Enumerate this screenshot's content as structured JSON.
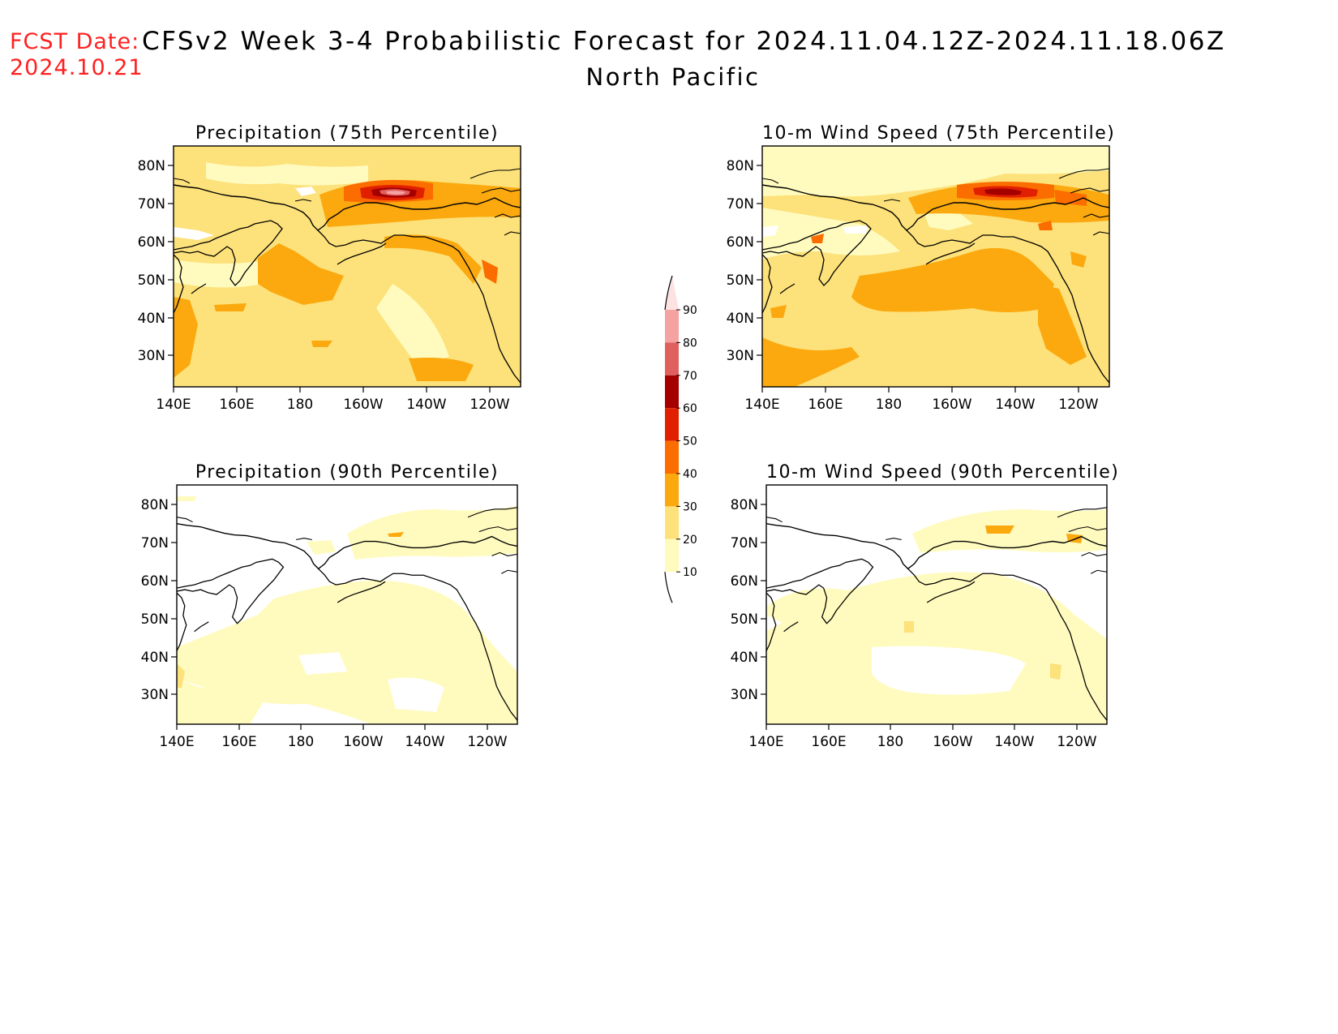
{
  "header": {
    "fcst_label": "FCST Date:",
    "fcst_date": "2024.10.21",
    "title": "CFSv2 Week 3-4 Probabilistic Forecast for 2024.11.04.12Z-2024.11.18.06Z",
    "region": "North Pacific"
  },
  "axes": {
    "lon_labels": [
      "140E",
      "160E",
      "180",
      "160W",
      "140W",
      "120W"
    ],
    "lat_labels": [
      "80N",
      "70N",
      "60N",
      "50N",
      "40N",
      "30N"
    ]
  },
  "panels": [
    {
      "id": "precip-75",
      "title": "Precipitation (75th Percentile)"
    },
    {
      "id": "wind-75",
      "title": "10-m Wind Speed (75th Percentile)"
    },
    {
      "id": "precip-90",
      "title": "Precipitation (90th Percentile)"
    },
    {
      "id": "wind-90",
      "title": "10-m Wind Speed (90th Percentile)"
    }
  ],
  "colorbar": {
    "levels": [
      "90",
      "80",
      "70",
      "60",
      "50",
      "40",
      "30",
      "20",
      "10"
    ],
    "colors": {
      "c10": "#fffbbe",
      "c20": "#fde17a",
      "c30": "#fba90e",
      "c40": "#fc6d00",
      "c50": "#e12000",
      "c60": "#a40000",
      "c70": "#e06060",
      "c80": "#f4a2a2",
      "c90": "#fde2e2"
    }
  }
}
